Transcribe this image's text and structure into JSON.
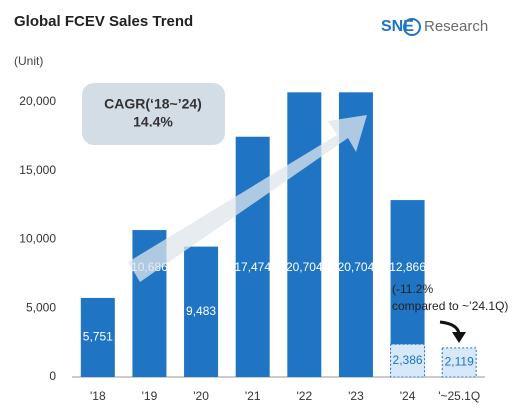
{
  "chart_data": {
    "type": "bar",
    "title": "Global FCEV Sales Trend",
    "unit_label": "(Unit)",
    "logo": {
      "brand": "SNE",
      "text": "Research"
    },
    "categories": [
      "'18",
      "'19",
      "'20",
      "'21",
      "'22",
      "'23",
      "'24",
      "'~25.1Q"
    ],
    "values": [
      5751,
      10686,
      9483,
      17474,
      20704,
      20704,
      12866,
      null
    ],
    "value_labels": [
      "5,751",
      "10,686",
      "9,483",
      "17,474",
      "20,704",
      "20,704",
      "12,866",
      null
    ],
    "color": "#1f74c4",
    "q1_values": [
      null,
      null,
      null,
      null,
      null,
      null,
      2386,
      2119
    ],
    "q1_value_labels": [
      null,
      null,
      null,
      null,
      null,
      null,
      "2,386",
      "2,119"
    ],
    "q1_color": "#d7e8f8",
    "ylim": [
      0,
      22000
    ],
    "yticks": [
      0,
      {
        "value": 5000,
        "label": "5,000"
      },
      {
        "value": 10000,
        "label": "10,000"
      },
      {
        "value": 15000,
        "label": "15,000"
      },
      {
        "value": 20000,
        "label": "20,000"
      }
    ],
    "annotations": {
      "cagr": [
        "CAGR(‘18~’24)",
        "14.4%"
      ],
      "change": [
        "(-11.2%",
        "compared to ~’24.1Q)"
      ]
    }
  }
}
